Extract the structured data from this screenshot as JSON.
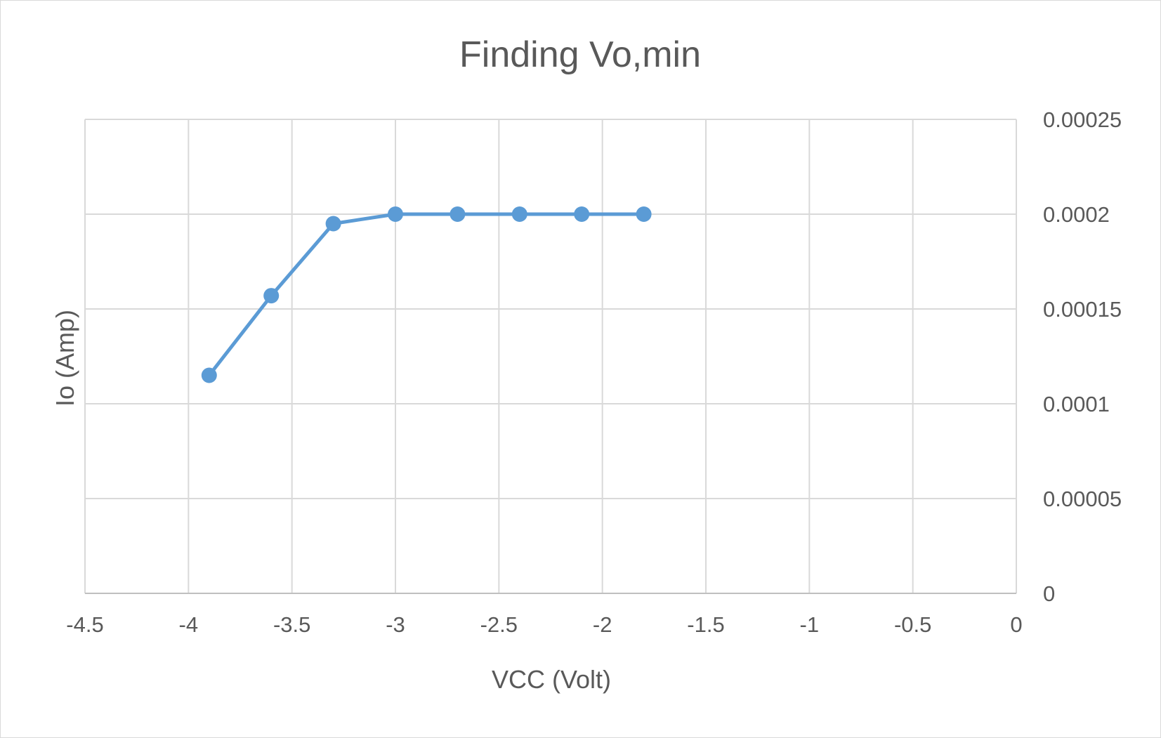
{
  "chart_data": {
    "type": "scatter",
    "title": "Finding Vo,min",
    "xlabel": "VCC (Volt)",
    "ylabel": "Io (Amp)",
    "xlim": [
      -4.5,
      0
    ],
    "ylim": [
      0,
      0.00025
    ],
    "x_ticks": [
      "-4.5",
      "-4",
      "-3.5",
      "-3",
      "-2.5",
      "-2",
      "-1.5",
      "-1",
      "-0.5",
      "0"
    ],
    "y_ticks": [
      "0",
      "0.00005",
      "0.0001",
      "0.00015",
      "0.0002",
      "0.00025"
    ],
    "y_axis_side": "right",
    "grid": true,
    "series": [
      {
        "color": "#5b9bd5",
        "x": [
          -3.9,
          -3.6,
          -3.3,
          -3.0,
          -2.7,
          -2.4,
          -2.1,
          -1.8
        ],
        "y": [
          0.000115,
          0.000157,
          0.000195,
          0.0002,
          0.0002,
          0.0002,
          0.0002,
          0.0002
        ]
      }
    ]
  }
}
